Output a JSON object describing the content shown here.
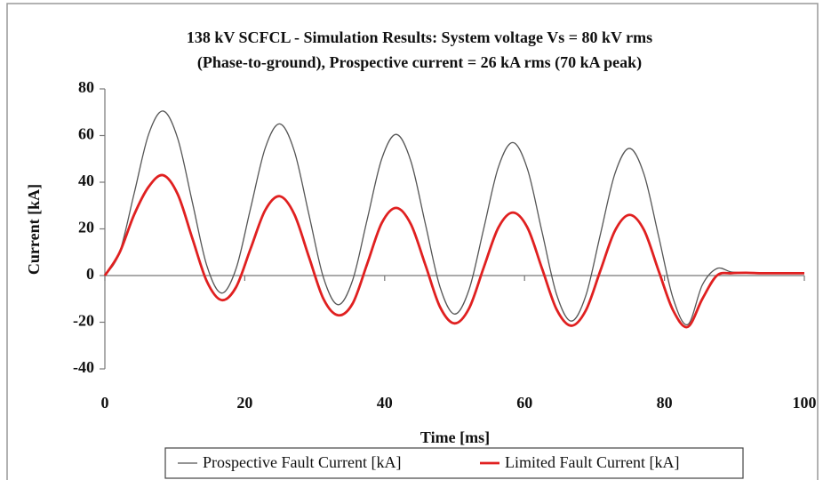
{
  "chart_data": {
    "type": "line",
    "title": "138 kV SCFCL - Simulation Results: System voltage Vs = 80 kV rms",
    "subtitle": "(Phase-to-ground), Prospective current = 26 kA rms (70 kA peak)",
    "x_label": "Time [ms]",
    "y_label": "Current [kA]",
    "x": [
      0,
      2.08,
      4.17,
      6.25,
      8.33,
      10.42,
      12.5,
      14.58,
      16.67,
      18.75,
      20.83,
      22.92,
      25,
      27.08,
      29.17,
      31.25,
      33.33,
      35.42,
      37.5,
      39.58,
      41.67,
      43.75,
      45.83,
      47.92,
      50,
      52.08,
      54.17,
      56.25,
      58.33,
      60.42,
      62.5,
      64.58,
      66.67,
      68.75,
      70.83,
      72.92,
      75,
      77.08,
      79.17,
      81.25,
      83.33,
      85.42,
      87.5,
      89.58,
      91.67,
      93.75,
      95.83,
      97.92,
      100
    ],
    "series": [
      {
        "name": "Prospective Fault Current [kA]",
        "color": "#555555",
        "values": [
          0,
          9.7,
          35,
          60.5,
          70.5,
          58.7,
          31.5,
          4.2,
          -7.5,
          2.9,
          28.8,
          54.6,
          65,
          53.4,
          26.2,
          -0.9,
          -12.5,
          -2,
          24,
          50,
          60.5,
          49,
          22,
          -5,
          -16.5,
          -5.9,
          20.2,
          46.4,
          57,
          45.6,
          18.7,
          -8.1,
          -19.5,
          -8.7,
          17.5,
          43.7,
          54.5,
          43.4,
          16.8,
          -9.9,
          -21,
          -4,
          3,
          1.5,
          1.2,
          1,
          1,
          1,
          1
        ]
      },
      {
        "name": "Limited Fault Current [kA]",
        "color": "#e02020",
        "values": [
          0,
          9.7,
          26,
          38,
          43,
          34.8,
          16,
          -2.5,
          -10.5,
          -5,
          11.5,
          28,
          34,
          26.3,
          8,
          -10,
          -17,
          -12,
          5,
          22.5,
          29,
          22,
          4.5,
          -13.5,
          -20.5,
          -14,
          3.5,
          20.5,
          27,
          20.5,
          3,
          -14.5,
          -21.5,
          -15,
          2,
          19.2,
          26,
          19.5,
          2,
          -15,
          -22,
          -10,
          0,
          1,
          1.2,
          1,
          1,
          1,
          1
        ]
      }
    ],
    "xlim": [
      0,
      100
    ],
    "xticks": [
      0,
      20,
      40,
      60,
      80,
      100
    ],
    "ylim": [
      -40,
      80
    ],
    "yticks": [
      -40,
      -20,
      0,
      20,
      40,
      60,
      80
    ],
    "legend": "bottom"
  }
}
